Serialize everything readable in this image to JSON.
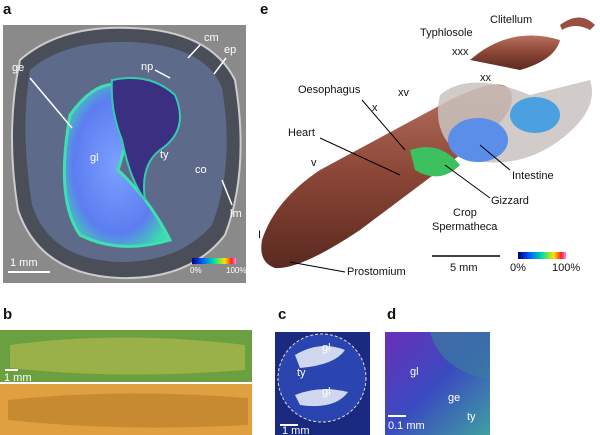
{
  "panels": {
    "a": {
      "letter": "a",
      "labels": [
        "ge",
        "gl",
        "ty",
        "co",
        "np",
        "cm",
        "ep",
        "lm"
      ],
      "scale_bar": "1 mm",
      "colorbar": [
        "0%",
        "100%"
      ]
    },
    "e": {
      "letter": "e",
      "labels": [
        "Typhlosole",
        "Clitellum",
        "xxx",
        "xx",
        "xv",
        "x",
        "v",
        "I",
        "Oesophagus",
        "Heart",
        "Intestine",
        "Gizzard",
        "Crop",
        "Spermatheca",
        "Prostomium"
      ],
      "scale_bar": "5 mm",
      "colorbar": [
        "0%",
        "100%"
      ]
    },
    "b": {
      "letter": "b",
      "scale_bar": "1 mm"
    },
    "c": {
      "letter": "c",
      "labels": [
        "gl",
        "ty",
        "gl"
      ],
      "scale_bar": "1 mm"
    },
    "d": {
      "letter": "d",
      "labels": [
        "gl",
        "ge",
        "ty"
      ],
      "scale_bar": "0.1 mm"
    }
  }
}
